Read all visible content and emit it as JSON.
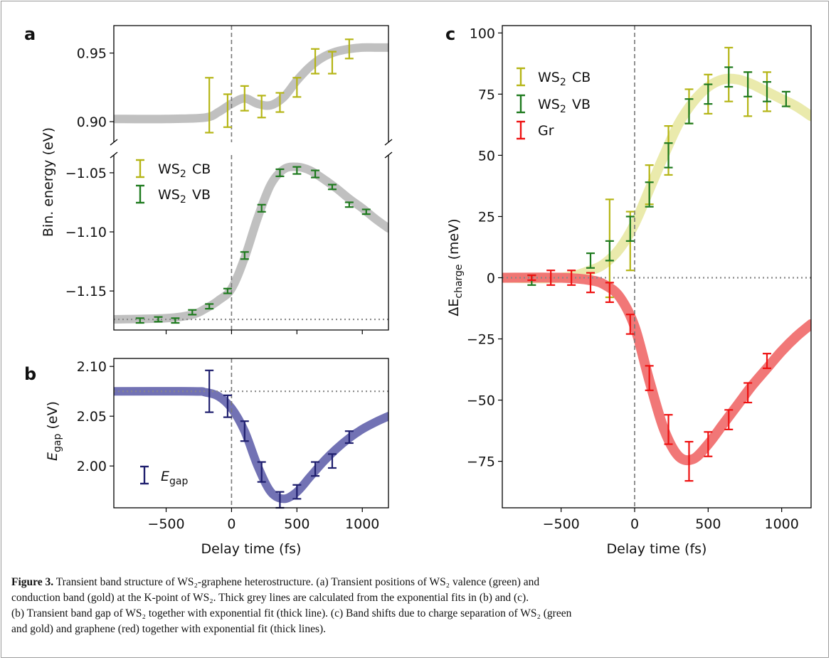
{
  "figure": {
    "caption_label": "Figure 3.",
    "caption_lines": [
      "Transient band structure of WS₂-graphene heterostructure. (a) Transient positions of WS₂ valence (green) and",
      "conduction band (gold) at the K-point of WS₂. Thick grey lines are calculated from the exponential fits in (b) and (c).",
      "(b) Transient band gap of WS₂ together with exponential fit (thick line). (c) Band shifts due to charge separation of WS₂ (green",
      "and gold) and graphene (red) together with exponential fit (thick lines)."
    ]
  },
  "colors": {
    "cb": "#b5b516",
    "vb": "#1e7a1e",
    "gr": "#ee1111",
    "gap": "#1f1f6e",
    "fit_grey": "#bdbdbd",
    "fit_gap": "#6a6ab0",
    "fit_gr": "#f07070",
    "fit_ws2": "#e9e9a8"
  },
  "chart_data": [
    {
      "panel": "a",
      "type": "line",
      "ylabel": "Bin. energy (eV)",
      "xlabel": "",
      "broken_axis": true,
      "xlim": [
        -900,
        1200
      ],
      "xticks": [
        -500,
        0,
        500,
        1000
      ],
      "upper": {
        "ylim": [
          0.885,
          0.97
        ],
        "yticks": [
          "0.90",
          "0.95"
        ],
        "ytick_values": [
          0.9,
          0.95
        ]
      },
      "lower": {
        "ylim": [
          -1.183,
          -1.035
        ],
        "yticks": [
          "−1.05",
          "−1.10",
          "−1.15"
        ],
        "ytick_values": [
          -1.05,
          -1.1,
          -1.15
        ]
      },
      "legend": {
        "position": "upper-left of lower part",
        "entries": [
          "WS₂ CB",
          "WS₂ VB"
        ]
      },
      "reference_line": {
        "y": -1.174,
        "style": "dotted"
      },
      "series": [
        {
          "name": "WS₂ CB",
          "axis": "upper",
          "x": [
            -170,
            -30,
            100,
            230,
            370,
            500,
            640,
            770,
            900
          ],
          "y": [
            0.912,
            0.908,
            0.917,
            0.911,
            0.914,
            0.925,
            0.944,
            0.943,
            0.953
          ],
          "err": [
            0.02,
            0.012,
            0.009,
            0.008,
            0.007,
            0.007,
            0.009,
            0.008,
            0.007
          ]
        },
        {
          "name": "WS₂ VB",
          "axis": "lower",
          "x": [
            -700,
            -560,
            -430,
            -300,
            -170,
            -30,
            100,
            230,
            370,
            500,
            640,
            770,
            900,
            1030
          ],
          "y": [
            -1.175,
            -1.174,
            -1.175,
            -1.168,
            -1.163,
            -1.15,
            -1.12,
            -1.08,
            -1.05,
            -1.048,
            -1.051,
            -1.062,
            -1.077,
            -1.083
          ],
          "err": [
            0.002,
            0.002,
            0.002,
            0.002,
            0.002,
            0.002,
            0.003,
            0.003,
            0.003,
            0.003,
            0.003,
            0.002,
            0.002,
            0.002
          ]
        },
        {
          "name": "",
          "role": "fit",
          "axis": "upper",
          "x": [
            -900,
            -500,
            -200,
            -100,
            0,
            100,
            200,
            300,
            400,
            500,
            600,
            700,
            800,
            900,
            1000,
            1100,
            1200
          ],
          "y": [
            0.902,
            0.902,
            0.903,
            0.907,
            0.913,
            0.917,
            0.913,
            0.912,
            0.918,
            0.93,
            0.94,
            0.947,
            0.951,
            0.953,
            0.954,
            0.954,
            0.954
          ]
        },
        {
          "name": "",
          "role": "fit",
          "axis": "lower",
          "x": [
            -900,
            -500,
            -300,
            -200,
            -100,
            0,
            100,
            200,
            300,
            400,
            500,
            600,
            700,
            800,
            900,
            1000,
            1100,
            1200
          ],
          "y": [
            -1.174,
            -1.173,
            -1.17,
            -1.165,
            -1.158,
            -1.148,
            -1.122,
            -1.088,
            -1.06,
            -1.047,
            -1.045,
            -1.048,
            -1.055,
            -1.063,
            -1.072,
            -1.08,
            -1.089,
            -1.097
          ]
        }
      ]
    },
    {
      "panel": "b",
      "type": "line",
      "ylabel": "E_gap (eV)",
      "xlabel": "Delay time (fs)",
      "xlim": [
        -900,
        1200
      ],
      "ylim": [
        1.958,
        2.108
      ],
      "yticks": [
        "2.10",
        "2.05",
        "2.00"
      ],
      "ytick_values": [
        2.1,
        2.05,
        2.0
      ],
      "xticks": [
        "−500",
        "0",
        "500",
        "1000"
      ],
      "xtick_values": [
        -500,
        0,
        500,
        1000
      ],
      "legend": {
        "position": "lower-left",
        "entries": [
          "E_gap"
        ]
      },
      "reference_line": {
        "y": 2.075,
        "style": "dotted",
        "from_x": -900
      },
      "series": [
        {
          "name": "E_gap",
          "x": [
            -170,
            -30,
            100,
            230,
            370,
            500,
            640,
            770,
            900
          ],
          "y": [
            2.075,
            2.06,
            2.035,
            1.994,
            1.966,
            1.974,
            1.997,
            2.005,
            2.029
          ],
          "err": [
            0.021,
            0.011,
            0.01,
            0.01,
            0.008,
            0.007,
            0.007,
            0.007,
            0.006
          ]
        },
        {
          "name": "",
          "role": "fit",
          "x": [
            -900,
            -300,
            -200,
            -100,
            0,
            100,
            200,
            300,
            400,
            500,
            600,
            700,
            800,
            900,
            1000,
            1100,
            1200
          ],
          "y": [
            2.075,
            2.075,
            2.074,
            2.07,
            2.058,
            2.035,
            2.0,
            1.974,
            1.967,
            1.974,
            1.989,
            2.004,
            2.017,
            2.028,
            2.037,
            2.044,
            2.05
          ]
        }
      ]
    },
    {
      "panel": "c",
      "type": "line",
      "ylabel": "ΔE_charge (meV)",
      "xlabel": "Delay time (fs)",
      "xlim": [
        -900,
        1200
      ],
      "ylim": [
        -94,
        103
      ],
      "yticks": [
        "100",
        "75",
        "50",
        "25",
        "0",
        "−25",
        "−50",
        "−75"
      ],
      "ytick_values": [
        100,
        75,
        50,
        25,
        0,
        -25,
        -50,
        -75
      ],
      "xticks": [
        "−500",
        "0",
        "500",
        "1000"
      ],
      "xtick_values": [
        -500,
        0,
        500,
        1000
      ],
      "legend": {
        "position": "upper-left",
        "entries": [
          "WS₂ CB",
          "WS₂ VB",
          "Gr"
        ]
      },
      "reference_line": {
        "y": 0,
        "style": "dotted"
      },
      "series": [
        {
          "name": "WS₂ CB",
          "x": [
            -170,
            -30,
            100,
            230,
            370,
            500,
            640,
            770,
            900
          ],
          "y": [
            12,
            15,
            38,
            52,
            70,
            75,
            83,
            75,
            76
          ],
          "err": [
            20,
            12,
            8,
            10,
            7,
            8,
            11,
            9,
            8
          ]
        },
        {
          "name": "WS₂ VB",
          "x": [
            -700,
            -300,
            -170,
            -30,
            100,
            230,
            370,
            500,
            640,
            770,
            900,
            1030
          ],
          "y": [
            -1,
            7,
            11,
            20,
            34,
            50,
            68,
            75,
            82,
            79,
            76,
            73
          ],
          "err": [
            2,
            3,
            4,
            5,
            5,
            5,
            5,
            4,
            4,
            5,
            4,
            3
          ]
        },
        {
          "name": "Gr",
          "x": [
            -700,
            -570,
            -430,
            -300,
            -170,
            -30,
            100,
            230,
            370,
            500,
            640,
            770,
            900
          ],
          "y": [
            0,
            0,
            0,
            -2,
            -6,
            -19,
            -41,
            -62,
            -75,
            -68,
            -58,
            -47,
            -34
          ],
          "err": [
            1,
            3,
            3,
            4,
            4,
            4,
            5,
            6,
            8,
            5,
            4,
            4,
            3
          ]
        },
        {
          "name": "",
          "role": "fit-ws2",
          "x": [
            -900,
            -500,
            -300,
            -200,
            -100,
            0,
            100,
            200,
            300,
            400,
            500,
            600,
            700,
            800,
            900,
            1000,
            1100,
            1200
          ],
          "y": [
            0,
            0,
            3,
            6,
            12,
            22,
            36,
            50,
            63,
            72,
            78,
            81,
            81,
            79,
            76,
            73,
            70,
            66
          ]
        },
        {
          "name": "",
          "role": "fit-gr",
          "x": [
            -900,
            -500,
            -300,
            -200,
            -100,
            0,
            100,
            200,
            300,
            400,
            500,
            600,
            700,
            800,
            900,
            1000,
            1100,
            1200
          ],
          "y": [
            0,
            0,
            -1,
            -3,
            -8,
            -20,
            -42,
            -62,
            -73,
            -74,
            -68,
            -60,
            -52,
            -44,
            -37,
            -30,
            -24,
            -19
          ]
        }
      ]
    }
  ]
}
